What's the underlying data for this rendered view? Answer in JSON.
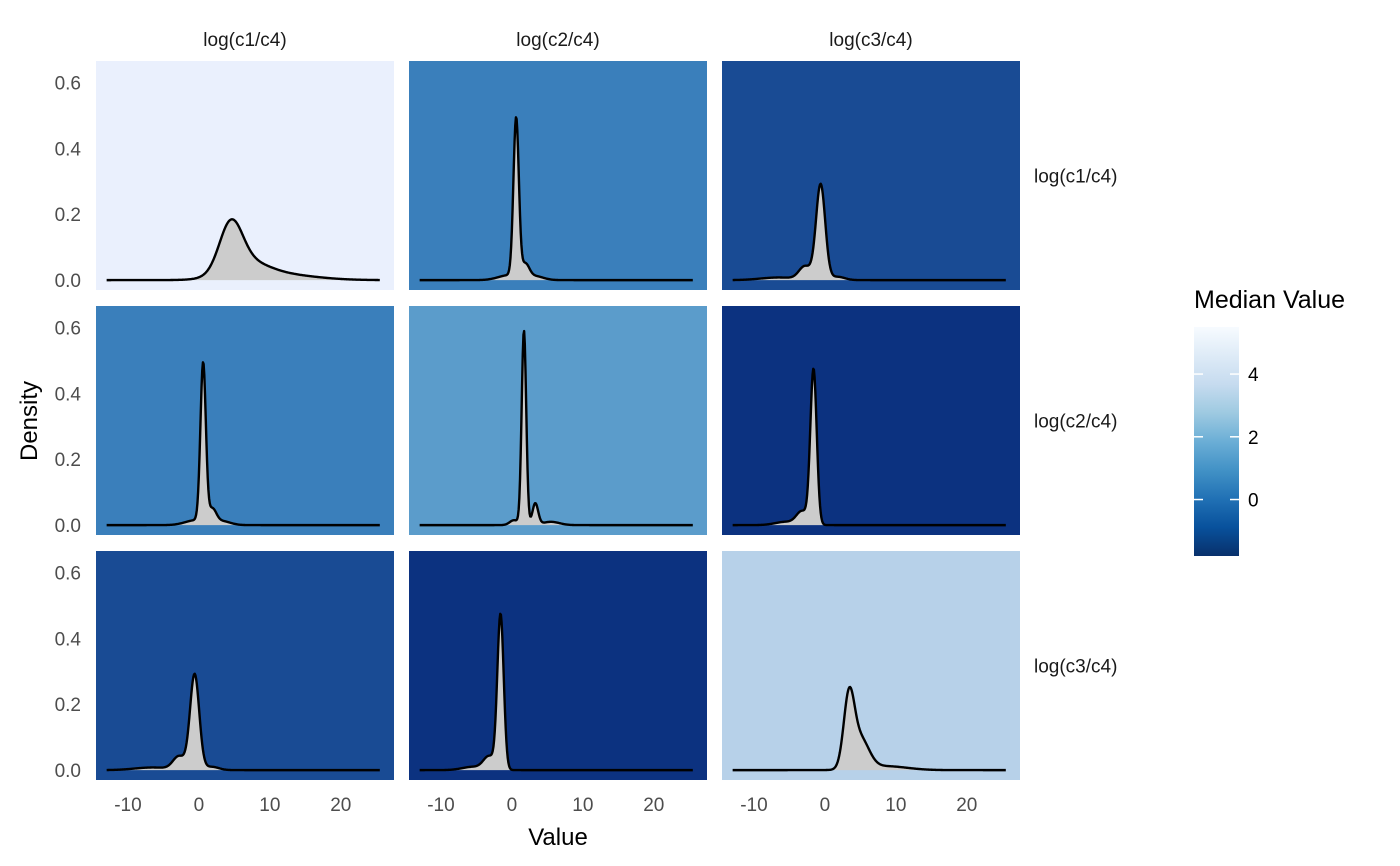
{
  "chart_data": {
    "type": "area",
    "title": "",
    "xlabel": "Value",
    "ylabel": "Density",
    "xlim": [
      -14.5,
      27.5
    ],
    "ylim": [
      -0.03,
      0.665
    ],
    "x_ticks": [
      -10,
      0,
      10,
      20
    ],
    "x_tick_labels": [
      "-10",
      "0",
      "10",
      "20"
    ],
    "y_ticks": [
      0.0,
      0.2,
      0.4,
      0.6
    ],
    "y_tick_labels": [
      "0.0",
      "0.2",
      "0.4",
      "0.6"
    ],
    "grid": false,
    "col_labels": [
      "log(c1/c4)",
      "log(c2/c4)",
      "log(c3/c4)"
    ],
    "row_labels": [
      "log(c1/c4)",
      "log(c2/c4)",
      "log(c3/c4)"
    ],
    "density_fill": "#cccccc",
    "line_color": "#000000",
    "legend": {
      "title": "Median Value",
      "position": "right",
      "range": [
        -1.8,
        5.5
      ],
      "ticks": [
        0,
        2,
        4
      ],
      "tick_labels": [
        "0",
        "2",
        "4"
      ],
      "colors": [
        "#08306b",
        "#08519c",
        "#2171b5",
        "#4292c6",
        "#6baed6",
        "#9ecae1",
        "#c6dbef",
        "#deebf7",
        "#f7fbff"
      ]
    },
    "panels": [
      {
        "row": 0,
        "col": 0,
        "median": 5.5,
        "bg": "#eaf0fd",
        "x_range": [
          -13,
          25.5
        ],
        "peaks": [
          [
            4.5,
            0.14,
            1.6
          ],
          [
            6.5,
            0.045,
            3.0
          ],
          [
            11,
            0.018,
            5.0
          ]
        ]
      },
      {
        "row": 0,
        "col": 1,
        "median": 0.5,
        "bg": "#3a7fbb",
        "x_range": [
          -13,
          25.5
        ],
        "peaks": [
          [
            0.6,
            0.48,
            0.38
          ],
          [
            1.9,
            0.04,
            0.55
          ],
          [
            -0.4,
            0.015,
            1.5
          ],
          [
            3.2,
            0.012,
            1.2
          ]
        ]
      },
      {
        "row": 0,
        "col": 2,
        "median": -0.8,
        "bg": "#194b94",
        "x_range": [
          -13,
          25.5
        ],
        "peaks": [
          [
            -0.6,
            0.29,
            0.65
          ],
          [
            -2.8,
            0.04,
            0.85
          ],
          [
            -6.5,
            0.008,
            2.5
          ],
          [
            1.8,
            0.01,
            1.0
          ]
        ]
      },
      {
        "row": 1,
        "col": 0,
        "median": 0.5,
        "bg": "#3a7fbb",
        "x_range": [
          -13,
          25.5
        ],
        "peaks": [
          [
            0.6,
            0.48,
            0.38
          ],
          [
            1.9,
            0.04,
            0.55
          ],
          [
            -0.4,
            0.015,
            1.5
          ],
          [
            3.2,
            0.012,
            1.2
          ]
        ]
      },
      {
        "row": 1,
        "col": 1,
        "median": 1.6,
        "bg": "#5b9ccb",
        "x_range": [
          -13,
          25.5
        ],
        "peaks": [
          [
            1.7,
            0.59,
            0.32
          ],
          [
            3.3,
            0.065,
            0.4
          ],
          [
            0.3,
            0.015,
            0.6
          ],
          [
            5.5,
            0.01,
            1.2
          ]
        ]
      },
      {
        "row": 1,
        "col": 2,
        "median": -1.6,
        "bg": "#0c3280",
        "x_range": [
          -13,
          25.5
        ],
        "peaks": [
          [
            -1.6,
            0.47,
            0.45
          ],
          [
            -3.2,
            0.04,
            0.8
          ],
          [
            -5.5,
            0.01,
            1.5
          ]
        ]
      },
      {
        "row": 2,
        "col": 0,
        "median": -0.8,
        "bg": "#194b94",
        "x_range": [
          -13,
          25.5
        ],
        "peaks": [
          [
            -0.6,
            0.29,
            0.65
          ],
          [
            -2.8,
            0.04,
            0.85
          ],
          [
            -6.5,
            0.008,
            2.5
          ],
          [
            1.8,
            0.01,
            1.0
          ]
        ]
      },
      {
        "row": 2,
        "col": 1,
        "median": -1.6,
        "bg": "#0c3280",
        "x_range": [
          -13,
          25.5
        ],
        "peaks": [
          [
            -1.6,
            0.47,
            0.45
          ],
          [
            -3.2,
            0.04,
            0.8
          ],
          [
            -5.5,
            0.01,
            1.5
          ]
        ]
      },
      {
        "row": 2,
        "col": 2,
        "median": 4.0,
        "bg": "#b7d1e9",
        "x_range": [
          -13,
          25.5
        ],
        "peaks": [
          [
            3.4,
            0.21,
            0.75
          ],
          [
            5.0,
            0.09,
            1.2
          ],
          [
            8.5,
            0.012,
            3.0
          ]
        ]
      }
    ]
  }
}
